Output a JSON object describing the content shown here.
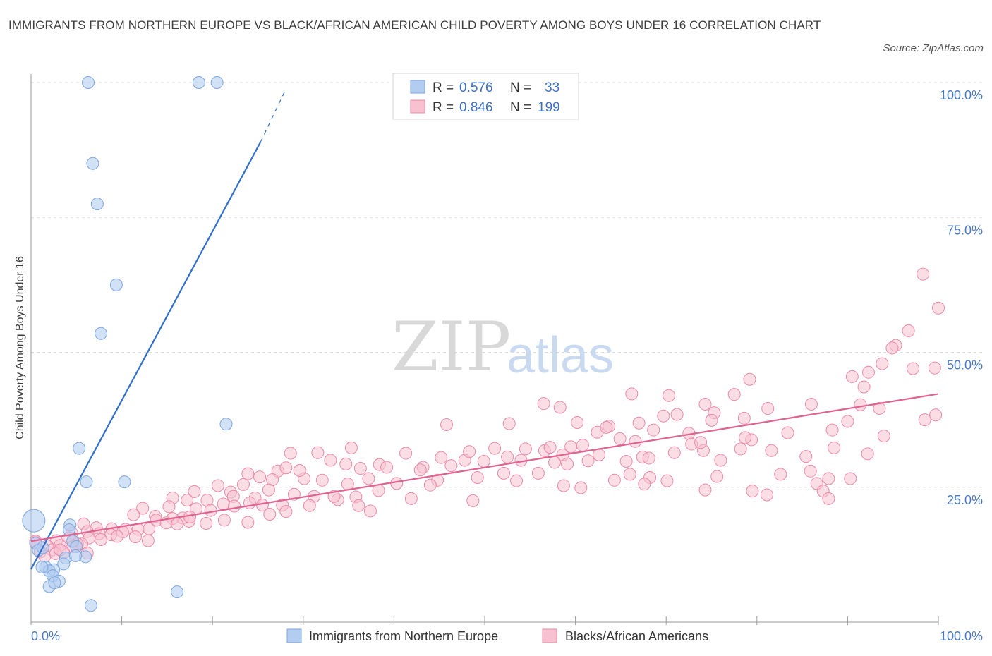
{
  "title": "IMMIGRANTS FROM NORTHERN EUROPE VS BLACK/AFRICAN AMERICAN CHILD POVERTY AMONG BOYS UNDER 16 CORRELATION CHART",
  "source": "Source: ZipAtlas.com",
  "watermark": {
    "zip": "ZIP",
    "atlas": "atlas"
  },
  "legend": {
    "r_label": "R =",
    "n_label": "N =",
    "series1": {
      "r": "0.576",
      "n": "33"
    },
    "series2": {
      "r": "0.846",
      "n": "199"
    }
  },
  "bottom_legend": [
    "Immigrants from Northern Europe",
    "Blacks/African Americans"
  ],
  "colors": {
    "blue_fill": "#b3cdf0",
    "blue_stroke": "#7ea6e0",
    "blue_line": "#2f6fcb",
    "pink_fill": "#f7c1d1",
    "pink_stroke": "#ec8aa8",
    "pink_line": "#e0628f",
    "grid": "#dcdcdc",
    "tick_label": "#4a78c2"
  },
  "chart_data": {
    "type": "scatter",
    "title": "IMMIGRANTS FROM NORTHERN EUROPE VS BLACK/AFRICAN AMERICAN CHILD POVERTY AMONG BOYS UNDER 16 CORRELATION CHART",
    "xlabel": "",
    "ylabel": "Child Poverty Among Boys Under 16",
    "xlim": [
      0,
      100
    ],
    "ylim": [
      0,
      100
    ],
    "x_tick_labels": [
      "0.0%",
      "100.0%"
    ],
    "y_tick_labels": [
      "25.0%",
      "50.0%",
      "75.0%",
      "100.0%"
    ],
    "y_ticks": [
      25,
      50,
      75,
      100
    ],
    "grid": true,
    "legend_position": "top-center",
    "series": [
      {
        "name": "Immigrants from Northern Europe",
        "color": "#7ea6e0",
        "r": 0.576,
        "n": 33,
        "trend": {
          "x": [
            0,
            25.3
          ],
          "y": [
            9.8,
            89.0
          ],
          "dashed_to": [
            28.0,
            98.5
          ]
        },
        "points": [
          [
            6.3,
            100
          ],
          [
            18.5,
            100
          ],
          [
            20.5,
            100
          ],
          [
            6.8,
            85
          ],
          [
            7.3,
            77.5
          ],
          [
            9.4,
            62.5
          ],
          [
            7.7,
            53.5
          ],
          [
            21.5,
            36.7
          ],
          [
            5.3,
            32.2
          ],
          [
            6.1,
            26.0
          ],
          [
            10.3,
            26.0
          ],
          [
            0.3,
            18.8
          ],
          [
            4.3,
            18.0
          ],
          [
            4.2,
            17.1
          ],
          [
            0.5,
            14.6
          ],
          [
            4.6,
            15.0
          ],
          [
            0.8,
            13.3
          ],
          [
            6.0,
            12.1
          ],
          [
            3.8,
            11.9
          ],
          [
            1.6,
            10.2
          ],
          [
            2.5,
            9.7
          ],
          [
            3.6,
            10.8
          ],
          [
            2.0,
            9.5
          ],
          [
            2.4,
            8.6
          ],
          [
            3.1,
            7.6
          ],
          [
            2.0,
            6.6
          ],
          [
            2.6,
            7.3
          ],
          [
            5.0,
            14.0
          ],
          [
            6.6,
            3.1
          ],
          [
            16.1,
            5.6
          ],
          [
            1.3,
            13.8
          ],
          [
            4.9,
            12.3
          ],
          [
            1.2,
            10.2
          ]
        ],
        "sizes": {
          "11": 16
        }
      },
      {
        "name": "Blacks/African Americans",
        "color": "#ec8aa8",
        "r": 0.846,
        "n": 199,
        "trend": {
          "x": [
            0,
            100
          ],
          "y": [
            15.0,
            42.3
          ]
        },
        "points": [
          [
            98.3,
            64.5
          ],
          [
            100.0,
            58.2
          ],
          [
            96.7,
            54.0
          ],
          [
            95.3,
            51.3
          ],
          [
            94.9,
            50.8
          ],
          [
            93.8,
            47.9
          ],
          [
            90.5,
            45.5
          ],
          [
            92.3,
            46.3
          ],
          [
            91.8,
            43.6
          ],
          [
            97.2,
            47.0
          ],
          [
            99.6,
            47.1
          ],
          [
            79.2,
            45.0
          ],
          [
            56.5,
            40.5
          ],
          [
            91.4,
            40.3
          ],
          [
            74.3,
            40.4
          ],
          [
            77.5,
            42.2
          ],
          [
            70.3,
            42.0
          ],
          [
            66.2,
            42.3
          ],
          [
            58.3,
            39.8
          ],
          [
            75.3,
            38.8
          ],
          [
            69.7,
            38.2
          ],
          [
            81.2,
            39.6
          ],
          [
            86.0,
            40.4
          ],
          [
            93.5,
            39.6
          ],
          [
            99.7,
            38.4
          ],
          [
            52.7,
            36.8
          ],
          [
            63.7,
            36.3
          ],
          [
            67.0,
            36.9
          ],
          [
            60.2,
            37.0
          ],
          [
            78.6,
            37.8
          ],
          [
            62.4,
            35.2
          ],
          [
            68.6,
            35.6
          ],
          [
            72.5,
            35.0
          ],
          [
            83.4,
            35.1
          ],
          [
            88.3,
            35.6
          ],
          [
            90.0,
            37.2
          ],
          [
            98.5,
            37.5
          ],
          [
            63.4,
            36.1
          ],
          [
            75.0,
            37.4
          ],
          [
            71.2,
            38.5
          ],
          [
            45.8,
            36.6
          ],
          [
            47.8,
            30.0
          ],
          [
            51.1,
            32.2
          ],
          [
            54.0,
            30.0
          ],
          [
            56.6,
            31.8
          ],
          [
            58.6,
            31.0
          ],
          [
            60.8,
            32.8
          ],
          [
            62.6,
            31.0
          ],
          [
            64.9,
            34.0
          ],
          [
            66.6,
            33.5
          ],
          [
            67.4,
            30.6
          ],
          [
            68.1,
            30.4
          ],
          [
            70.9,
            31.4
          ],
          [
            72.8,
            33.0
          ],
          [
            74.1,
            31.8
          ],
          [
            76.0,
            30.0
          ],
          [
            78.2,
            32.1
          ],
          [
            79.4,
            33.8
          ],
          [
            81.6,
            31.8
          ],
          [
            85.4,
            30.7
          ],
          [
            88.5,
            32.3
          ],
          [
            92.2,
            31.2
          ],
          [
            94.0,
            34.5
          ],
          [
            41.3,
            31.3
          ],
          [
            45.2,
            30.5
          ],
          [
            49.9,
            29.8
          ],
          [
            52.5,
            30.6
          ],
          [
            54.5,
            32.1
          ],
          [
            57.2,
            32.4
          ],
          [
            59.5,
            32.5
          ],
          [
            65.6,
            29.8
          ],
          [
            73.8,
            33.3
          ],
          [
            78.7,
            34.2
          ],
          [
            35.3,
            32.3
          ],
          [
            38.4,
            29.2
          ],
          [
            43.2,
            28.7
          ],
          [
            46.3,
            29.0
          ],
          [
            48.3,
            31.6
          ],
          [
            52.1,
            27.6
          ],
          [
            55.9,
            27.6
          ],
          [
            57.7,
            29.6
          ],
          [
            59.1,
            29.3
          ],
          [
            61.4,
            29.9
          ],
          [
            64.3,
            26.3
          ],
          [
            66.0,
            27.4
          ],
          [
            68.2,
            26.8
          ],
          [
            70.1,
            26.2
          ],
          [
            82.6,
            27.4
          ],
          [
            85.9,
            28.0
          ],
          [
            87.9,
            26.6
          ],
          [
            90.3,
            26.6
          ],
          [
            28.6,
            31.3
          ],
          [
            31.6,
            31.4
          ],
          [
            33.0,
            30.0
          ],
          [
            34.7,
            29.3
          ],
          [
            36.3,
            28.5
          ],
          [
            39.2,
            28.7
          ],
          [
            42.9,
            28.2
          ],
          [
            27.2,
            28.0
          ],
          [
            30.1,
            26.6
          ],
          [
            32.1,
            26.3
          ],
          [
            34.9,
            25.6
          ],
          [
            37.2,
            26.6
          ],
          [
            40.3,
            25.7
          ],
          [
            44.8,
            26.3
          ],
          [
            49.2,
            26.8
          ],
          [
            60.6,
            24.9
          ],
          [
            75.6,
            27.0
          ],
          [
            79.5,
            24.3
          ],
          [
            81.1,
            23.6
          ],
          [
            86.6,
            25.7
          ],
          [
            87.3,
            24.3
          ],
          [
            87.9,
            22.9
          ],
          [
            67.6,
            25.6
          ],
          [
            74.3,
            24.5
          ],
          [
            58.7,
            25.3
          ],
          [
            53.5,
            26.2
          ],
          [
            23.9,
            27.5
          ],
          [
            25.2,
            26.9
          ],
          [
            26.6,
            26.4
          ],
          [
            28.1,
            28.6
          ],
          [
            29.6,
            28.1
          ],
          [
            23.4,
            25.5
          ],
          [
            20.6,
            25.3
          ],
          [
            18.0,
            24.2
          ],
          [
            22.0,
            24.1
          ],
          [
            24.7,
            23.0
          ],
          [
            26.2,
            24.5
          ],
          [
            29.0,
            23.7
          ],
          [
            31.2,
            23.3
          ],
          [
            33.8,
            22.7
          ],
          [
            35.8,
            23.2
          ],
          [
            38.3,
            24.4
          ],
          [
            15.6,
            23.0
          ],
          [
            17.2,
            22.6
          ],
          [
            19.4,
            22.6
          ],
          [
            21.2,
            21.9
          ],
          [
            22.3,
            23.3
          ],
          [
            24.1,
            22.1
          ],
          [
            27.7,
            21.7
          ],
          [
            30.7,
            21.6
          ],
          [
            33.4,
            23.3
          ],
          [
            36.1,
            21.6
          ],
          [
            37.4,
            20.6
          ],
          [
            41.9,
            22.9
          ],
          [
            44.0,
            25.4
          ],
          [
            48.7,
            22.5
          ],
          [
            12.3,
            21.1
          ],
          [
            13.7,
            19.6
          ],
          [
            15.2,
            21.4
          ],
          [
            16.7,
            19.3
          ],
          [
            18.2,
            21.0
          ],
          [
            19.8,
            20.7
          ],
          [
            22.4,
            21.5
          ],
          [
            25.5,
            21.7
          ],
          [
            28.1,
            20.5
          ],
          [
            11.3,
            19.9
          ],
          [
            13.8,
            18.9
          ],
          [
            15.6,
            19.2
          ],
          [
            17.4,
            18.7
          ],
          [
            19.3,
            18.3
          ],
          [
            21.3,
            18.9
          ],
          [
            23.9,
            18.5
          ],
          [
            26.3,
            20.0
          ],
          [
            5.8,
            18.2
          ],
          [
            7.2,
            17.5
          ],
          [
            8.9,
            17.3
          ],
          [
            10.4,
            17.2
          ],
          [
            11.8,
            17.2
          ],
          [
            13.0,
            17.3
          ],
          [
            14.9,
            18.4
          ],
          [
            16.1,
            18.2
          ],
          [
            17.5,
            19.5
          ],
          [
            4.5,
            16.5
          ],
          [
            6.2,
            16.8
          ],
          [
            7.5,
            16.4
          ],
          [
            8.8,
            16.2
          ],
          [
            10.1,
            16.7
          ],
          [
            11.5,
            15.8
          ],
          [
            12.9,
            15.1
          ],
          [
            2.8,
            15.1
          ],
          [
            4.2,
            15.6
          ],
          [
            5.1,
            14.5
          ],
          [
            6.4,
            15.6
          ],
          [
            7.7,
            15.3
          ],
          [
            9.5,
            15.9
          ],
          [
            0.5,
            14.8
          ],
          [
            1.8,
            14.1
          ],
          [
            3.2,
            14.2
          ],
          [
            4.6,
            14.0
          ],
          [
            5.6,
            14.5
          ],
          [
            1.0,
            13.0
          ],
          [
            2.3,
            13.4
          ],
          [
            3.6,
            12.9
          ],
          [
            1.5,
            12.2
          ],
          [
            0.5,
            15.0
          ],
          [
            2.7,
            12.7
          ],
          [
            6.2,
            12.8
          ],
          [
            5.1,
            14.5
          ],
          [
            3.2,
            13.4
          ]
        ]
      }
    ]
  }
}
